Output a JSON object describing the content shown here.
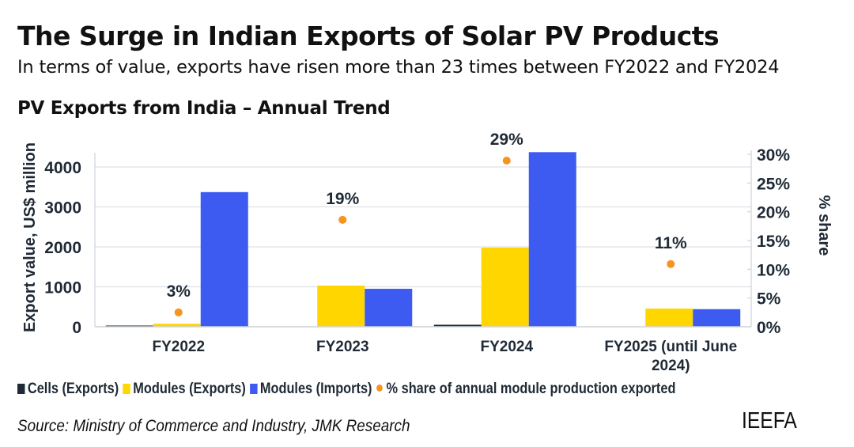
{
  "header": {
    "title": "The Surge in Indian Exports of Solar PV Products",
    "subtitle": "In terms of value, exports have risen more than 23 times between FY2022 and FY2024"
  },
  "chart_data": {
    "type": "bar",
    "title": "PV Exports from India – Annual Trend",
    "categories": [
      "FY2022",
      "FY2023",
      "FY2024",
      "FY2025 (until June 2024)"
    ],
    "category_label_lines": [
      [
        "FY2022"
      ],
      [
        "FY2023"
      ],
      [
        "FY2024"
      ],
      [
        "FY2025 (until June",
        "2024)"
      ]
    ],
    "ylabel": "Export value, US$ million",
    "ylim": [
      0,
      4000
    ],
    "yticks": [
      "0",
      "1000",
      "2000",
      "3000",
      "4000"
    ],
    "y2label": "% share",
    "y2lim": [
      0,
      30
    ],
    "y2ticks": [
      "0%",
      "5%",
      "10%",
      "15%",
      "20%",
      "25%",
      "30%"
    ],
    "grid": true,
    "legend_position": "bottom",
    "series": [
      {
        "name": "Cells (Exports)",
        "kind": "bar",
        "axis": "left",
        "color": "#1f2a36",
        "values": [
          30,
          0,
          50,
          0
        ]
      },
      {
        "name": "Modules (Exports)",
        "kind": "bar",
        "axis": "left",
        "color": "#FFD600",
        "values": [
          75,
          1030,
          1980,
          455
        ]
      },
      {
        "name": "Modules (Imports)",
        "kind": "bar",
        "axis": "left",
        "color": "#3D5AF1",
        "values": [
          3370,
          950,
          4370,
          440
        ]
      },
      {
        "name": "% share of annual module production exported",
        "kind": "scatter",
        "axis": "right",
        "color": "#F7941D",
        "values": [
          2.5,
          18.6,
          28.9,
          10.9
        ],
        "data_labels": [
          "3%",
          "19%",
          "29%",
          "11%"
        ]
      }
    ]
  },
  "footer": {
    "source": "Source: Ministry of Commerce and Industry, JMK Research",
    "logo": "IEEFA"
  }
}
